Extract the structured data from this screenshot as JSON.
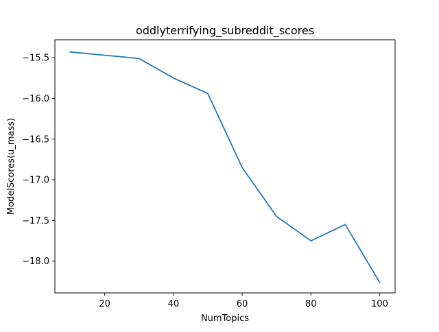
{
  "chart_data": {
    "type": "line",
    "title": "oddlyterrifying_subreddit_scores",
    "xlabel": "NumTopics",
    "ylabel": "ModelScores(u_mass)",
    "xlim": [
      5.5,
      104.5
    ],
    "ylim": [
      -18.39,
      -15.28
    ],
    "xticks": [
      20,
      40,
      60,
      80,
      100
    ],
    "xtick_labels": [
      "20",
      "40",
      "60",
      "80",
      "100"
    ],
    "yticks": [
      -15.5,
      -16.0,
      -16.5,
      -17.0,
      -17.5,
      -18.0
    ],
    "ytick_labels": [
      "−15.5",
      "−16.0",
      "−16.5",
      "−17.0",
      "−17.5",
      "−18.0"
    ],
    "grid": false,
    "series": [
      {
        "color": "#1f77b4",
        "x": [
          10,
          20,
          30,
          40,
          50,
          60,
          70,
          80,
          90,
          100
        ],
        "y": [
          -15.43,
          -15.47,
          -15.51,
          -15.75,
          -15.94,
          -16.85,
          -17.45,
          -17.75,
          -17.55,
          -18.26
        ]
      }
    ]
  }
}
